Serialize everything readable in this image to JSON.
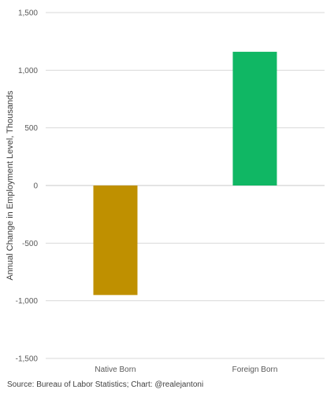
{
  "chart_data": {
    "type": "bar",
    "title": "",
    "ylabel": "Annual Change in Employment Level, Thousands",
    "xlabel": "",
    "categories": [
      "Native Born",
      "Foreign Born"
    ],
    "values": [
      -950,
      1160
    ],
    "ylim": [
      -1500,
      1500
    ],
    "yticks": [
      1500,
      1000,
      500,
      0,
      -500,
      -1000,
      -1500
    ],
    "ytick_labels": [
      "1,500",
      "1,000",
      "500",
      "0",
      "-500",
      "-1,000",
      "-1,500"
    ],
    "bar_colors": [
      "#bf9000",
      "#10b764"
    ],
    "grid": true,
    "legend": "none"
  },
  "source_note": "Source: Bureau of Labor Statistics; Chart: @realejantoni"
}
